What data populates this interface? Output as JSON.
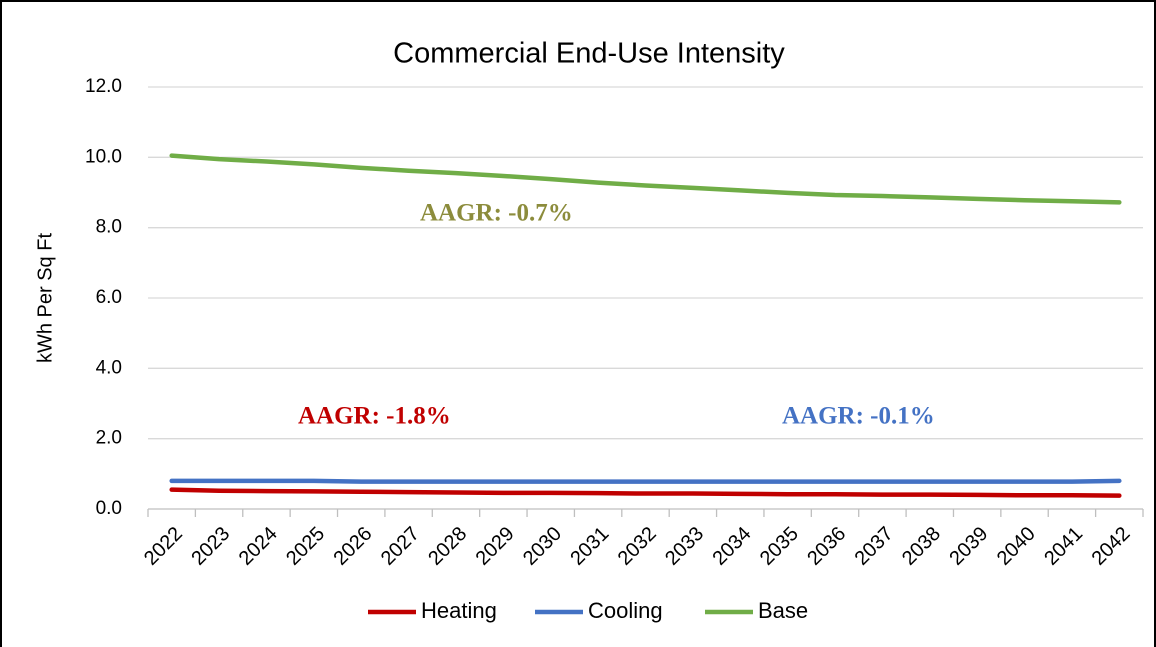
{
  "chart_data": {
    "type": "line",
    "title": "Commercial End-Use Intensity",
    "y_label": "kWh Per Sq Ft",
    "categories": [
      "2022",
      "2023",
      "2024",
      "2025",
      "2026",
      "2027",
      "2028",
      "2029",
      "2030",
      "2031",
      "2032",
      "2033",
      "2034",
      "2035",
      "2036",
      "2037",
      "2038",
      "2039",
      "2040",
      "2041",
      "2042"
    ],
    "series": [
      {
        "name": "Heating",
        "color": "#c00000",
        "values": [
          0.55,
          0.52,
          0.51,
          0.5,
          0.49,
          0.48,
          0.47,
          0.46,
          0.46,
          0.45,
          0.44,
          0.44,
          0.43,
          0.42,
          0.42,
          0.41,
          0.41,
          0.4,
          0.39,
          0.39,
          0.38
        ]
      },
      {
        "name": "Cooling",
        "color": "#4472c4",
        "values": [
          0.8,
          0.8,
          0.8,
          0.8,
          0.78,
          0.78,
          0.78,
          0.78,
          0.78,
          0.78,
          0.78,
          0.78,
          0.78,
          0.78,
          0.78,
          0.78,
          0.78,
          0.78,
          0.78,
          0.78,
          0.8
        ]
      },
      {
        "name": "Base",
        "color": "#70ad47",
        "values": [
          10.05,
          9.95,
          9.88,
          9.8,
          9.7,
          9.62,
          9.55,
          9.47,
          9.38,
          9.28,
          9.2,
          9.13,
          9.06,
          8.99,
          8.93,
          8.9,
          8.86,
          8.82,
          8.78,
          8.75,
          8.72
        ]
      }
    ],
    "ylim": [
      0,
      12
    ],
    "yticks": [
      {
        "value": 0,
        "label": "0.0"
      },
      {
        "value": 2,
        "label": "2.0"
      },
      {
        "value": 4,
        "label": "4.0"
      },
      {
        "value": 6,
        "label": "6.0"
      },
      {
        "value": 8,
        "label": "8.0"
      },
      {
        "value": 10,
        "label": "10.0"
      },
      {
        "value": 12,
        "label": "12.0"
      }
    ],
    "grid": true,
    "legend": "bottom",
    "annotations": [
      {
        "text": "AAGR: -0.7%",
        "color": "#8c8c3c"
      },
      {
        "text": "AAGR: -1.8%",
        "color": "#c00000"
      },
      {
        "text": "AAGR: -0.1%",
        "color": "#4472c4"
      }
    ]
  }
}
